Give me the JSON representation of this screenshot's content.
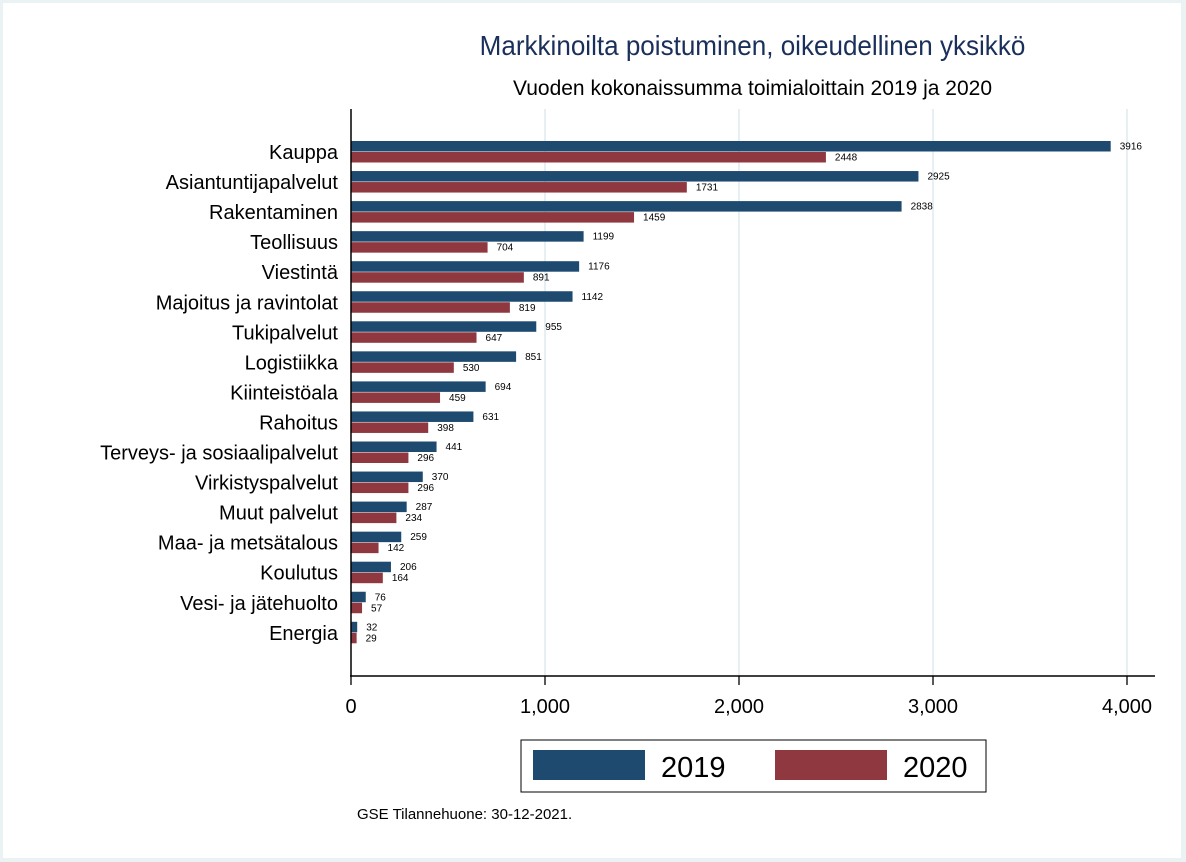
{
  "chart_data": {
    "type": "bar",
    "orientation": "horizontal",
    "title": "Markkinoilta poistuminen, oikeudellinen yksikkö",
    "subtitle": "Vuoden kokonaissumma toimialoittain 2019 ja 2020",
    "xlabel": "",
    "ylabel": "",
    "xlim": [
      0,
      4000
    ],
    "xticks": [
      0,
      1000,
      2000,
      3000,
      4000
    ],
    "xtick_labels": [
      "0",
      "1,000",
      "2,000",
      "3,000",
      "4,000"
    ],
    "grid": true,
    "legend_position": "bottom",
    "categories": [
      "Kauppa",
      "Asiantuntijapalvelut",
      "Rakentaminen",
      "Teollisuus",
      "Viestintä",
      "Majoitus ja ravintolat",
      "Tukipalvelut",
      "Logistiikka",
      "Kiinteistöala",
      "Rahoitus",
      "Terveys- ja sosiaalipalvelut",
      "Virkistyspalvelut",
      "Muut palvelut",
      "Maa- ja metsätalous",
      "Koulutus",
      "Vesi- ja jätehuolto",
      "Energia"
    ],
    "series": [
      {
        "name": "2019",
        "color": "#1f4a70",
        "values": [
          3916,
          2925,
          2838,
          1199,
          1176,
          1142,
          955,
          851,
          694,
          631,
          441,
          370,
          287,
          259,
          206,
          76,
          32
        ]
      },
      {
        "name": "2020",
        "color": "#903840",
        "values": [
          2448,
          1731,
          1459,
          704,
          891,
          819,
          647,
          530,
          459,
          398,
          296,
          296,
          234,
          142,
          164,
          57,
          29
        ]
      }
    ],
    "footnote": "GSE Tilannehuone: 30-12-2021."
  }
}
